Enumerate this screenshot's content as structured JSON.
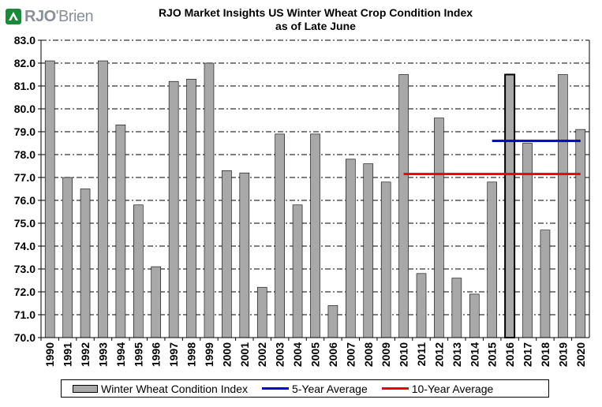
{
  "logo": {
    "text_bold": "RJO",
    "text_rest": "'Brien",
    "mark_color": "#1a8a3a"
  },
  "header": {
    "title_line1": "RJO Market Insights US Winter Wheat Crop Condition Index",
    "title_line2": "as of Late June"
  },
  "legend": {
    "bar_label": "Winter Wheat Condition Index",
    "avg5_label": "5-Year Average",
    "avg10_label": "10-Year Average"
  },
  "colors": {
    "bar": "#a8a8a8",
    "avg5": "#0000cc",
    "avg10": "#ee0000"
  },
  "chart_data": {
    "type": "bar",
    "categories": [
      "1990",
      "1991",
      "1992",
      "1993",
      "1994",
      "1995",
      "1996",
      "1997",
      "1998",
      "1999",
      "2000",
      "2001",
      "2002",
      "2003",
      "2004",
      "2005",
      "2006",
      "2007",
      "2008",
      "2009",
      "2010",
      "2011",
      "2012",
      "2013",
      "2014",
      "2015",
      "2016",
      "2017",
      "2018",
      "2019",
      "2020"
    ],
    "series": [
      {
        "name": "Winter Wheat Condition Index",
        "values": [
          82.1,
          77.0,
          76.5,
          82.1,
          79.3,
          75.8,
          73.1,
          81.2,
          81.3,
          82.0,
          77.3,
          77.2,
          72.2,
          78.9,
          75.8,
          78.9,
          71.4,
          77.8,
          77.6,
          76.8,
          81.5,
          72.8,
          79.6,
          72.6,
          71.9,
          76.8,
          81.5,
          78.5,
          74.7,
          81.5,
          79.1
        ]
      }
    ],
    "highlight_category": "2016",
    "overlays": [
      {
        "name": "5-Year Average",
        "value": 78.6,
        "from": "2015",
        "to": "2020"
      },
      {
        "name": "10-Year Average",
        "value": 77.15,
        "from": "2010",
        "to": "2020"
      }
    ],
    "ylim": [
      70.0,
      83.0
    ],
    "yticks": [
      "70.0",
      "71.0",
      "72.0",
      "73.0",
      "74.0",
      "75.0",
      "76.0",
      "77.0",
      "78.0",
      "79.0",
      "80.0",
      "81.0",
      "82.0",
      "83.0"
    ],
    "grid": true,
    "legend_position": "bottom"
  }
}
